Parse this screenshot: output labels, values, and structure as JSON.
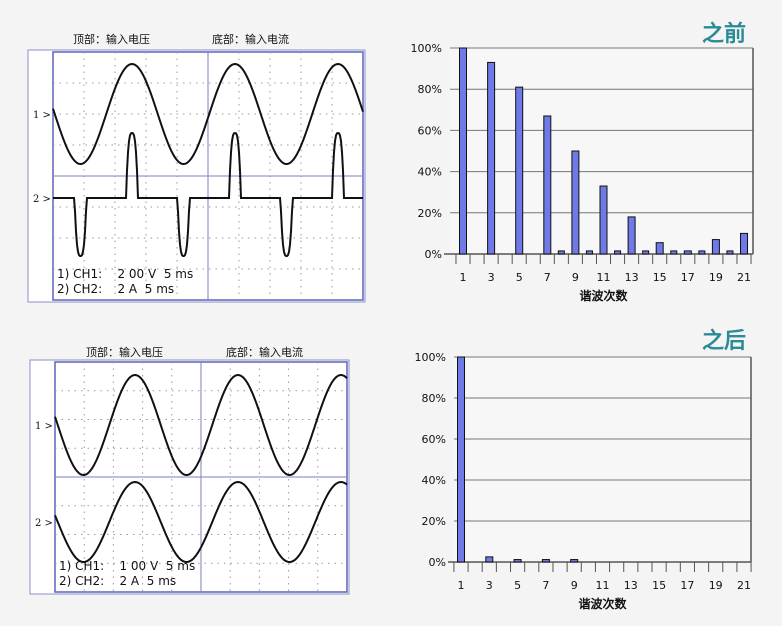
{
  "scopes": [
    {
      "top_label": "顶部：输入电压",
      "bottom_label": "底部：输入电流",
      "ch1_marker": "1 >",
      "ch2_marker": "2 >",
      "ch1_setting": "1) CH1:    2 00 V  5 ms",
      "ch2_setting": "2) CH2:    2 A  5 ms",
      "ch2_waveform": "pulsed"
    },
    {
      "top_label": "顶部：输入电压",
      "bottom_label": "底部：输入电流",
      "ch1_marker": "1 >",
      "ch2_marker": "2 >",
      "ch1_setting": "1) CH1:    1 00 V  5 ms",
      "ch2_setting": "2) CH2:    2 A  5 ms",
      "ch2_waveform": "sine"
    }
  ],
  "colors": {
    "bar": "#6f7ae8",
    "title": "#2a8a96",
    "scope_frame": "#5b63b8"
  },
  "chart_data": [
    {
      "type": "bar",
      "title": "之前",
      "xlabel": "谐波次数",
      "ylabel": "",
      "ylim": [
        0,
        100
      ],
      "yticks": [
        "0%",
        "20%",
        "40%",
        "60%",
        "80%",
        "100%"
      ],
      "grid": true,
      "xticks": [
        "1",
        "3",
        "5",
        "7",
        "9",
        "11",
        "13",
        "15",
        "17",
        "19",
        "21"
      ],
      "categories": [
        1,
        2,
        3,
        4,
        5,
        6,
        7,
        8,
        9,
        10,
        11,
        12,
        13,
        14,
        15,
        16,
        17,
        18,
        19,
        20,
        21
      ],
      "values": [
        100,
        0,
        93,
        0,
        81,
        0,
        67,
        1.5,
        50,
        1.5,
        33,
        1.5,
        18,
        1.5,
        5.5,
        1.5,
        1.5,
        1.5,
        7,
        1.5,
        10
      ]
    },
    {
      "type": "bar",
      "title": "之后",
      "xlabel": "谐波次数",
      "ylabel": "",
      "ylim": [
        0,
        100
      ],
      "yticks": [
        "0%",
        "20%",
        "40%",
        "60%",
        "80%",
        "100%"
      ],
      "grid": true,
      "xticks": [
        "1",
        "3",
        "5",
        "7",
        "9",
        "11",
        "13",
        "15",
        "17",
        "19",
        "21"
      ],
      "categories": [
        1,
        2,
        3,
        4,
        5,
        6,
        7,
        8,
        9,
        10,
        11,
        12,
        13,
        14,
        15,
        16,
        17,
        18,
        19,
        20,
        21
      ],
      "values": [
        100,
        0,
        2.5,
        0,
        1.2,
        0,
        1.2,
        0,
        1.2,
        0,
        0,
        0,
        0,
        0,
        0,
        0,
        0,
        0,
        0,
        0,
        0
      ]
    }
  ]
}
